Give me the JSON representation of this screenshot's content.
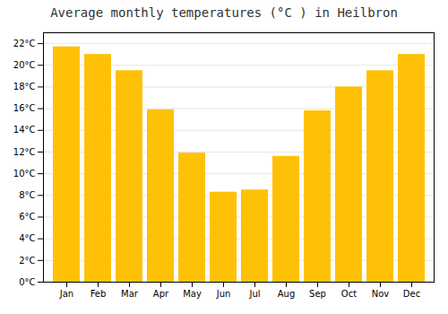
{
  "chart_data": {
    "type": "bar",
    "title": "Average monthly temperatures (°C ) in Heilbron",
    "categories": [
      "Jan",
      "Feb",
      "Mar",
      "Apr",
      "May",
      "Jun",
      "Jul",
      "Aug",
      "Sep",
      "Oct",
      "Nov",
      "Dec"
    ],
    "values": [
      21.7,
      21.0,
      19.5,
      15.9,
      11.9,
      8.3,
      8.5,
      11.6,
      15.8,
      18.0,
      19.5,
      21.0
    ],
    "color": "#FFC107",
    "ylim": [
      0,
      23
    ],
    "yticks": [
      {
        "value": 0,
        "label": "0°C"
      },
      {
        "value": 2,
        "label": "2°C"
      },
      {
        "value": 4,
        "label": "4°C"
      },
      {
        "value": 6,
        "label": "6°C"
      },
      {
        "value": 8,
        "label": "8°C"
      },
      {
        "value": 10,
        "label": "10°C"
      },
      {
        "value": 12,
        "label": "12°C"
      },
      {
        "value": 14,
        "label": "14°C"
      },
      {
        "value": 16,
        "label": "16°C"
      },
      {
        "value": 18,
        "label": "18°C"
      },
      {
        "value": 20,
        "label": "20°C"
      },
      {
        "value": 22,
        "label": "22°C"
      }
    ],
    "grid": true
  }
}
